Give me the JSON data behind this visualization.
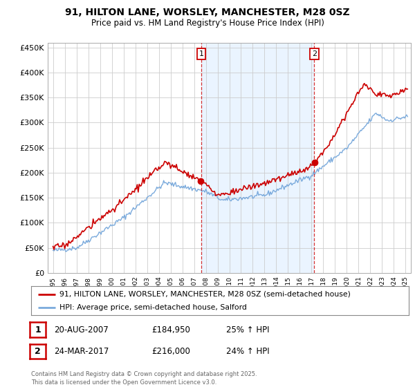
{
  "title_line1": "91, HILTON LANE, WORSLEY, MANCHESTER, M28 0SZ",
  "title_line2": "Price paid vs. HM Land Registry's House Price Index (HPI)",
  "legend_label1": "91, HILTON LANE, WORSLEY, MANCHESTER, M28 0SZ (semi-detached house)",
  "legend_label2": "HPI: Average price, semi-detached house, Salford",
  "annotation1_label": "1",
  "annotation1_date": "20-AUG-2007",
  "annotation1_price": "£184,950",
  "annotation1_hpi": "25% ↑ HPI",
  "annotation2_label": "2",
  "annotation2_date": "24-MAR-2017",
  "annotation2_price": "£216,000",
  "annotation2_hpi": "24% ↑ HPI",
  "footer": "Contains HM Land Registry data © Crown copyright and database right 2025.\nThis data is licensed under the Open Government Licence v3.0.",
  "color_red": "#cc0000",
  "color_blue": "#7aaadc",
  "color_grid": "#cccccc",
  "color_bg": "#ffffff",
  "color_shade": "#ddeeff",
  "ylim": [
    0,
    460000
  ],
  "yticks": [
    0,
    50000,
    100000,
    150000,
    200000,
    250000,
    300000,
    350000,
    400000,
    450000
  ],
  "ytick_labels": [
    "£0",
    "£50K",
    "£100K",
    "£150K",
    "£200K",
    "£250K",
    "£300K",
    "£350K",
    "£400K",
    "£450K"
  ],
  "sale1_year": 2007.62,
  "sale2_year": 2017.23,
  "sale1_price": 184950,
  "sale2_price": 216000
}
